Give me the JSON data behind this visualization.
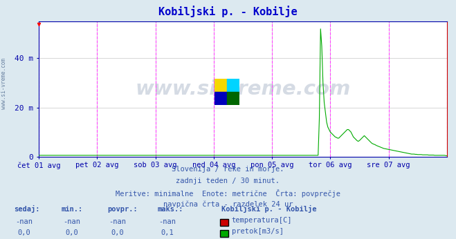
{
  "title": "Kobiljski p. - Kobilje",
  "bg_color": "#dce9f0",
  "plot_bg_color": "#ffffff",
  "grid_color": "#d0d0d0",
  "vline_color": "#ff44ff",
  "title_color": "#0000cc",
  "axis_label_color": "#0000aa",
  "text_color": "#3355aa",
  "x_tick_labels": [
    "čet 01 avg",
    "pet 02 avg",
    "sob 03 avg",
    "ned 04 avg",
    "pon 05 avg",
    "tor 06 avg",
    "sre 07 avg"
  ],
  "x_tick_positions": [
    0,
    48,
    96,
    144,
    192,
    240,
    288
  ],
  "x_vline_positions": [
    0,
    48,
    96,
    144,
    192,
    240,
    288,
    336
  ],
  "y_ticks": [
    0,
    20,
    40
  ],
  "y_tick_labels": [
    "0",
    "20 m",
    "40 m"
  ],
  "ylim": [
    0,
    55
  ],
  "xlim": [
    0,
    336
  ],
  "flow_baseline": 0.5,
  "flow_peak_x": 232,
  "flow_peak_y": 52,
  "flow_post_peak": [
    [
      233,
      45
    ],
    [
      234,
      30
    ],
    [
      235,
      22
    ],
    [
      236,
      18
    ],
    [
      237,
      14
    ],
    [
      238,
      12
    ],
    [
      239,
      11
    ],
    [
      240,
      10
    ],
    [
      241,
      9.5
    ],
    [
      242,
      9
    ],
    [
      243,
      8.5
    ],
    [
      244,
      8
    ],
    [
      245,
      7.8
    ],
    [
      246,
      7.5
    ],
    [
      247,
      7.5
    ],
    [
      248,
      8
    ],
    [
      249,
      8.5
    ],
    [
      250,
      9
    ],
    [
      251,
      9.5
    ],
    [
      252,
      10
    ],
    [
      253,
      10.5
    ],
    [
      254,
      11
    ],
    [
      255,
      11
    ],
    [
      256,
      10.5
    ],
    [
      257,
      10
    ],
    [
      258,
      9
    ],
    [
      259,
      8
    ],
    [
      260,
      7.5
    ],
    [
      261,
      7
    ],
    [
      262,
      6.5
    ],
    [
      263,
      6.2
    ],
    [
      264,
      6.5
    ],
    [
      265,
      7
    ],
    [
      266,
      7.5
    ],
    [
      267,
      8
    ],
    [
      268,
      8.5
    ],
    [
      269,
      8
    ],
    [
      270,
      7.5
    ],
    [
      271,
      7
    ],
    [
      272,
      6.5
    ],
    [
      273,
      6
    ],
    [
      274,
      5.5
    ],
    [
      275,
      5.2
    ],
    [
      276,
      5
    ],
    [
      277,
      4.8
    ],
    [
      278,
      4.5
    ],
    [
      279,
      4.3
    ],
    [
      280,
      4.1
    ],
    [
      281,
      3.9
    ],
    [
      282,
      3.7
    ],
    [
      283,
      3.5
    ],
    [
      284,
      3.3
    ],
    [
      285,
      3.2
    ],
    [
      286,
      3.1
    ],
    [
      287,
      3.0
    ],
    [
      288,
      2.9
    ],
    [
      289,
      2.8
    ],
    [
      290,
      2.7
    ],
    [
      291,
      2.6
    ],
    [
      292,
      2.5
    ],
    [
      293,
      2.4
    ],
    [
      294,
      2.3
    ],
    [
      295,
      2.2
    ],
    [
      296,
      2.1
    ],
    [
      297,
      2.0
    ],
    [
      298,
      1.9
    ],
    [
      299,
      1.8
    ],
    [
      300,
      1.7
    ],
    [
      301,
      1.6
    ],
    [
      302,
      1.5
    ],
    [
      303,
      1.4
    ],
    [
      304,
      1.3
    ],
    [
      305,
      1.2
    ],
    [
      306,
      1.1
    ],
    [
      307,
      1.0
    ],
    [
      308,
      1.0
    ],
    [
      309,
      1.0
    ],
    [
      310,
      0.9
    ],
    [
      311,
      0.9
    ],
    [
      312,
      0.8
    ],
    [
      313,
      0.8
    ],
    [
      314,
      0.8
    ],
    [
      315,
      0.8
    ],
    [
      316,
      0.7
    ],
    [
      317,
      0.7
    ],
    [
      318,
      0.7
    ],
    [
      319,
      0.7
    ],
    [
      320,
      0.7
    ],
    [
      321,
      0.6
    ],
    [
      322,
      0.6
    ],
    [
      323,
      0.6
    ],
    [
      324,
      0.6
    ],
    [
      325,
      0.6
    ],
    [
      326,
      0.5
    ],
    [
      327,
      0.5
    ],
    [
      328,
      0.5
    ],
    [
      329,
      0.5
    ],
    [
      330,
      0.5
    ],
    [
      331,
      0.5
    ],
    [
      332,
      0.5
    ],
    [
      333,
      0.5
    ],
    [
      334,
      0.5
    ],
    [
      335,
      0.4
    ],
    [
      336,
      0.3
    ]
  ],
  "temp_color": "#ff0000",
  "flow_color": "#00aa00",
  "watermark_text": "www.si-vreme.com",
  "watermark_color": "#1a3a6a",
  "watermark_alpha": 0.18,
  "logo_colors": [
    "#f5d800",
    "#00d4ff",
    "#0000bb",
    "#006600"
  ],
  "footer_lines": [
    "Slovenija / reke in morje.",
    "zadnji teden / 30 minut.",
    "Meritve: minimalne  Enote: metrične  Črta: povprečje",
    "navpična črta - razdelek 24 ur"
  ],
  "table_headers": [
    "sedaj:",
    "min.:",
    "povpr.:",
    "maks.:"
  ],
  "table_row1": [
    "-nan",
    "-nan",
    "-nan",
    "-nan"
  ],
  "table_row2": [
    "0,0",
    "0,0",
    "0,0",
    "0,1"
  ],
  "legend_title": "Kobiljski p. - Kobilje",
  "legend_items": [
    "temperatura[C]",
    "pretok[m3/s]"
  ],
  "legend_colors": [
    "#cc0000",
    "#00aa00"
  ],
  "border_color": "#0000aa",
  "right_border_color": "#cc0000"
}
